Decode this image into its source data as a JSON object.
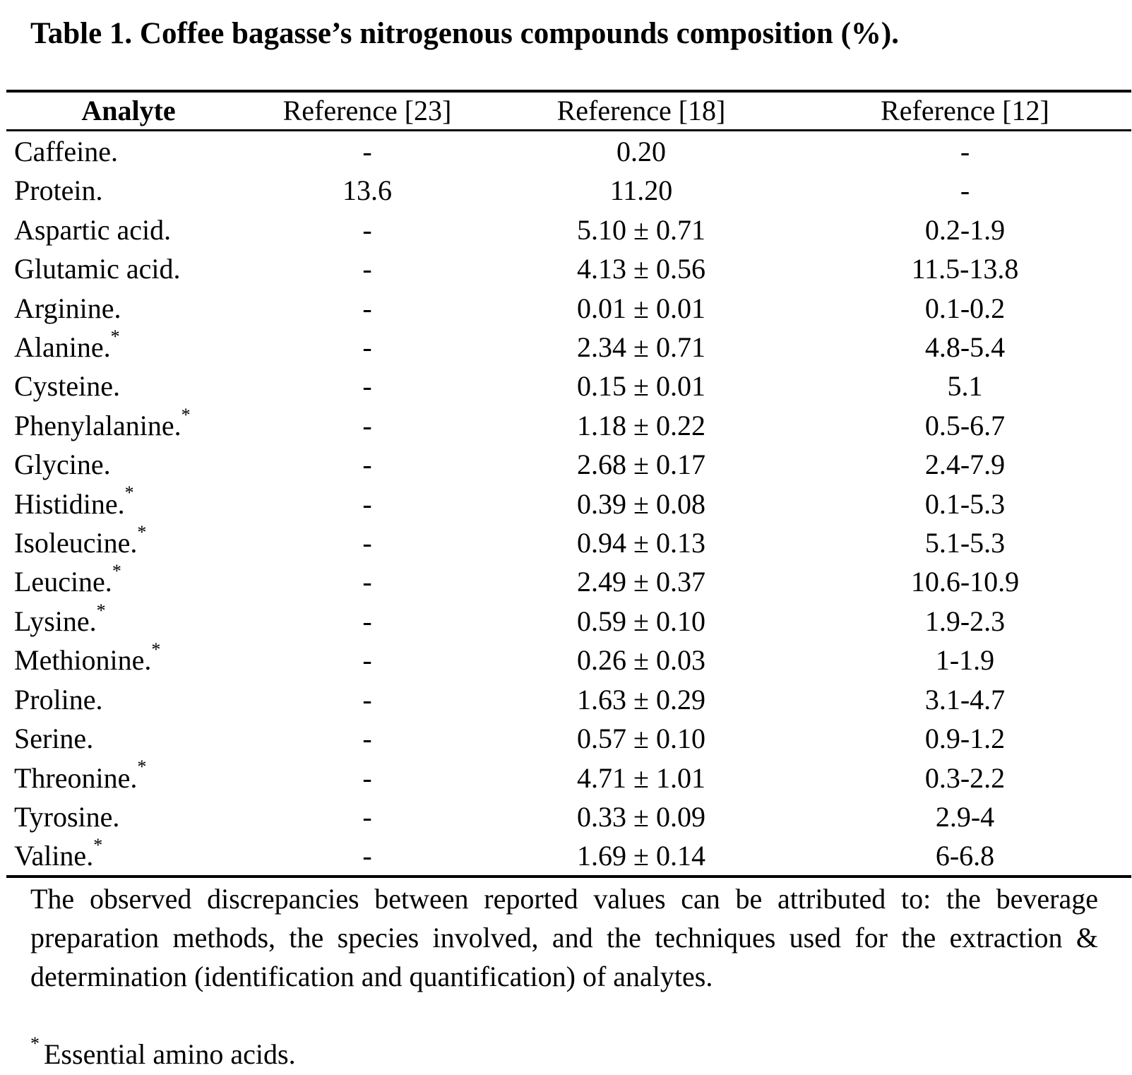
{
  "caption": "Table 1. Coffee bagasse’s nitrogenous compounds composition (%).",
  "table": {
    "headers": [
      "Analyte",
      "Reference [23]",
      "Reference [18]",
      "Reference [12]"
    ],
    "rows": [
      {
        "analyte": "Caffeine.",
        "essential": false,
        "ref23": "-",
        "ref18": "0.20",
        "ref12": "-"
      },
      {
        "analyte": "Protein.",
        "essential": false,
        "ref23": "13.6",
        "ref18": "11.20",
        "ref12": "-"
      },
      {
        "analyte": "Aspartic acid.",
        "essential": false,
        "ref23": "-",
        "ref18": "5.10 ± 0.71",
        "ref12": "0.2-1.9"
      },
      {
        "analyte": "Glutamic acid.",
        "essential": false,
        "ref23": "-",
        "ref18": "4.13 ± 0.56",
        "ref12": "11.5-13.8"
      },
      {
        "analyte": "Arginine.",
        "essential": false,
        "ref23": "-",
        "ref18": "0.01 ± 0.01",
        "ref12": "0.1-0.2"
      },
      {
        "analyte": "Alanine.",
        "essential": true,
        "ref23": "-",
        "ref18": "2.34 ± 0.71",
        "ref12": "4.8-5.4"
      },
      {
        "analyte": "Cysteine.",
        "essential": false,
        "ref23": "-",
        "ref18": "0.15 ± 0.01",
        "ref12": "5.1"
      },
      {
        "analyte": "Phenylalanine.",
        "essential": true,
        "ref23": "-",
        "ref18": "1.18 ± 0.22",
        "ref12": "0.5-6.7"
      },
      {
        "analyte": "Glycine.",
        "essential": false,
        "ref23": "-",
        "ref18": "2.68 ± 0.17",
        "ref12": "2.4-7.9"
      },
      {
        "analyte": "Histidine.",
        "essential": true,
        "ref23": "-",
        "ref18": "0.39 ± 0.08",
        "ref12": "0.1-5.3"
      },
      {
        "analyte": "Isoleucine.",
        "essential": true,
        "ref23": "-",
        "ref18": "0.94 ± 0.13",
        "ref12": "5.1-5.3"
      },
      {
        "analyte": "Leucine.",
        "essential": true,
        "ref23": "-",
        "ref18": "2.49 ± 0.37",
        "ref12": "10.6-10.9"
      },
      {
        "analyte": "Lysine.",
        "essential": true,
        "ref23": "-",
        "ref18": "0.59 ± 0.10",
        "ref12": "1.9-2.3"
      },
      {
        "analyte": "Methionine.",
        "essential": true,
        "ref23": "-",
        "ref18": "0.26 ± 0.03",
        "ref12": "1-1.9"
      },
      {
        "analyte": "Proline.",
        "essential": false,
        "ref23": "-",
        "ref18": "1.63 ± 0.29",
        "ref12": "3.1-4.7"
      },
      {
        "analyte": "Serine.",
        "essential": false,
        "ref23": "-",
        "ref18": "0.57 ± 0.10",
        "ref12": "0.9-1.2"
      },
      {
        "analyte": "Threonine.",
        "essential": true,
        "ref23": "-",
        "ref18": "4.71 ± 1.01",
        "ref12": "0.3-2.2"
      },
      {
        "analyte": "Tyrosine.",
        "essential": false,
        "ref23": "-",
        "ref18": "0.33 ± 0.09",
        "ref12": "2.9-4"
      },
      {
        "analyte": "Valine.",
        "essential": true,
        "ref23": "-",
        "ref18": "1.69 ± 0.14",
        "ref12": "6-6.8"
      }
    ]
  },
  "note": "The observed discrepancies between reported values can be attributed to: the beverage preparation methods, the species involved, and the techniques used for the extraction & determination (identification and quantification) of analytes.",
  "footnote": {
    "marker": "*",
    "text": "Essential amino acids."
  }
}
